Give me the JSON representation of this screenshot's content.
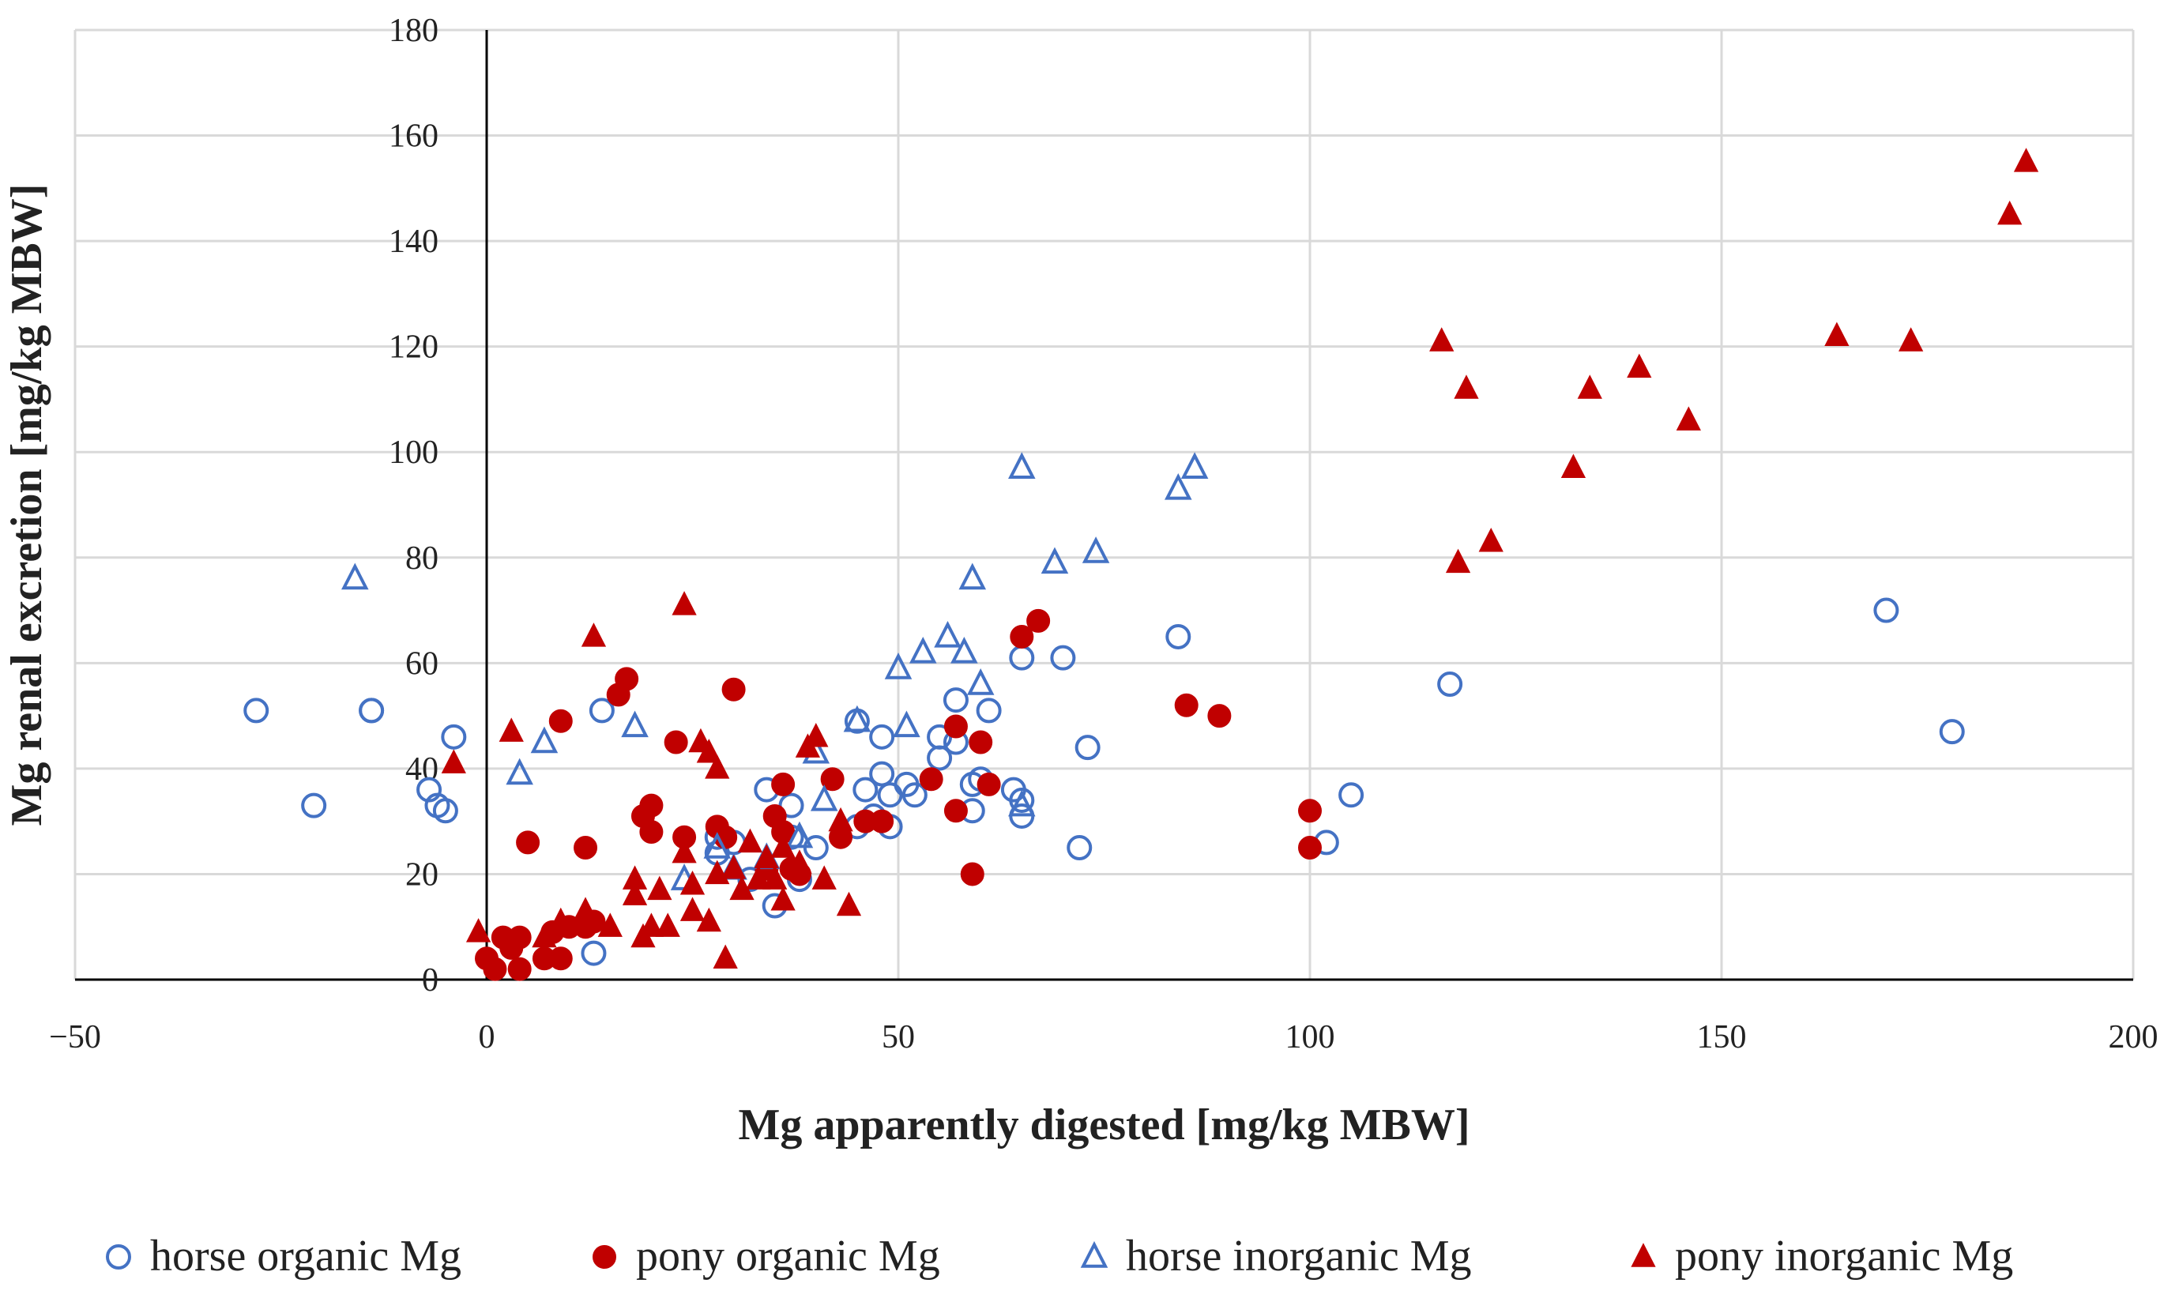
{
  "chart_data": {
    "type": "scatter",
    "title": "",
    "xlabel": "Mg apparently digested [mg/kg MBW]",
    "ylabel": "Mg renal excretion [mg/kg MBW]",
    "xlim": [
      -50,
      200
    ],
    "ylim": [
      0,
      180
    ],
    "xticks": [
      -50,
      0,
      50,
      100,
      150,
      200
    ],
    "xtick_labels": [
      "−50",
      "0",
      "50",
      "100",
      "150",
      "200"
    ],
    "yticks": [
      0,
      20,
      40,
      60,
      80,
      100,
      120,
      140,
      160,
      180
    ],
    "ytick_labels": [
      "0",
      "20",
      "40",
      "60",
      "80",
      "100",
      "120",
      "140",
      "160",
      "180"
    ],
    "grid": true,
    "legend_position": "bottom",
    "series": [
      {
        "name": "horse organic Mg",
        "marker": "circle-open",
        "color": "#4472C4",
        "points": [
          [
            -28,
            51
          ],
          [
            -21,
            33
          ],
          [
            -14,
            51
          ],
          [
            -14,
            51
          ],
          [
            -7,
            36
          ],
          [
            -6,
            33
          ],
          [
            -5,
            32
          ],
          [
            -4,
            46
          ],
          [
            13,
            5
          ],
          [
            14,
            51
          ],
          [
            28,
            24
          ],
          [
            28,
            27
          ],
          [
            30,
            26
          ],
          [
            32,
            19
          ],
          [
            34,
            36
          ],
          [
            35,
            14
          ],
          [
            37,
            33
          ],
          [
            37,
            27
          ],
          [
            38,
            19
          ],
          [
            40,
            25
          ],
          [
            45,
            29
          ],
          [
            45,
            49
          ],
          [
            46,
            36
          ],
          [
            47,
            31
          ],
          [
            48,
            46
          ],
          [
            48,
            39
          ],
          [
            49,
            29
          ],
          [
            49,
            35
          ],
          [
            51,
            37
          ],
          [
            52,
            35
          ],
          [
            55,
            46
          ],
          [
            55,
            42
          ],
          [
            57,
            53
          ],
          [
            57,
            45
          ],
          [
            59,
            37
          ],
          [
            59,
            32
          ],
          [
            60,
            38
          ],
          [
            61,
            51
          ],
          [
            64,
            36
          ],
          [
            65,
            34
          ],
          [
            65,
            31
          ],
          [
            65,
            61
          ],
          [
            70,
            61
          ],
          [
            72,
            25
          ],
          [
            73,
            44
          ],
          [
            84,
            65
          ],
          [
            102,
            26
          ],
          [
            105,
            35
          ],
          [
            117,
            56
          ],
          [
            170,
            70
          ],
          [
            178,
            47
          ]
        ]
      },
      {
        "name": "pony organic Mg",
        "marker": "circle-filled",
        "color": "#C00000",
        "points": [
          [
            0,
            4
          ],
          [
            1,
            2
          ],
          [
            2,
            8
          ],
          [
            3,
            6
          ],
          [
            4,
            2
          ],
          [
            4,
            8
          ],
          [
            5,
            26
          ],
          [
            7,
            4
          ],
          [
            8,
            9
          ],
          [
            9,
            49
          ],
          [
            9,
            4
          ],
          [
            10,
            10
          ],
          [
            12,
            10
          ],
          [
            12,
            25
          ],
          [
            13,
            11
          ],
          [
            16,
            54
          ],
          [
            17,
            57
          ],
          [
            19,
            31
          ],
          [
            20,
            33
          ],
          [
            20,
            28
          ],
          [
            23,
            45
          ],
          [
            24,
            27
          ],
          [
            28,
            29
          ],
          [
            29,
            27
          ],
          [
            30,
            55
          ],
          [
            34,
            21
          ],
          [
            35,
            31
          ],
          [
            36,
            37
          ],
          [
            36,
            28
          ],
          [
            37,
            21
          ],
          [
            38,
            20
          ],
          [
            42,
            38
          ],
          [
            43,
            27
          ],
          [
            46,
            30
          ],
          [
            48,
            30
          ],
          [
            54,
            38
          ],
          [
            57,
            48
          ],
          [
            57,
            32
          ],
          [
            59,
            20
          ],
          [
            60,
            45
          ],
          [
            61,
            37
          ],
          [
            65,
            65
          ],
          [
            67,
            68
          ],
          [
            85,
            52
          ],
          [
            89,
            50
          ],
          [
            100,
            32
          ],
          [
            100,
            25
          ]
        ]
      },
      {
        "name": "horse inorganic Mg",
        "marker": "triangle-open",
        "color": "#4472C4",
        "points": [
          [
            -16,
            76
          ],
          [
            4,
            39
          ],
          [
            7,
            45
          ],
          [
            18,
            48
          ],
          [
            24,
            19
          ],
          [
            28,
            25
          ],
          [
            30,
            21
          ],
          [
            34,
            23
          ],
          [
            38,
            27
          ],
          [
            40,
            43
          ],
          [
            41,
            34
          ],
          [
            45,
            49
          ],
          [
            50,
            59
          ],
          [
            51,
            48
          ],
          [
            53,
            62
          ],
          [
            56,
            65
          ],
          [
            58,
            62
          ],
          [
            59,
            76
          ],
          [
            60,
            56
          ],
          [
            65,
            97
          ],
          [
            69,
            79
          ],
          [
            74,
            81
          ],
          [
            84,
            93
          ],
          [
            86,
            97
          ],
          [
            65,
            33
          ]
        ]
      },
      {
        "name": "pony inorganic Mg",
        "marker": "triangle-filled",
        "color": "#C00000",
        "points": [
          [
            -1,
            9
          ],
          [
            -4,
            41
          ],
          [
            3,
            47
          ],
          [
            7,
            8
          ],
          [
            9,
            11
          ],
          [
            12,
            13
          ],
          [
            13,
            65
          ],
          [
            15,
            10
          ],
          [
            18,
            19
          ],
          [
            18,
            16
          ],
          [
            19,
            8
          ],
          [
            20,
            10
          ],
          [
            21,
            17
          ],
          [
            22,
            10
          ],
          [
            24,
            24
          ],
          [
            24,
            71
          ],
          [
            25,
            18
          ],
          [
            25,
            13
          ],
          [
            26,
            45
          ],
          [
            27,
            11
          ],
          [
            27,
            43
          ],
          [
            28,
            40
          ],
          [
            28,
            20
          ],
          [
            29,
            4
          ],
          [
            30,
            21
          ],
          [
            31,
            17
          ],
          [
            32,
            26
          ],
          [
            33,
            19
          ],
          [
            34,
            23
          ],
          [
            35,
            19
          ],
          [
            36,
            15
          ],
          [
            36,
            25
          ],
          [
            38,
            22
          ],
          [
            39,
            44
          ],
          [
            40,
            46
          ],
          [
            41,
            19
          ],
          [
            43,
            30
          ],
          [
            44,
            14
          ],
          [
            116,
            121
          ],
          [
            118,
            79
          ],
          [
            119,
            112
          ],
          [
            122,
            83
          ],
          [
            132,
            97
          ],
          [
            134,
            112
          ],
          [
            140,
            116
          ],
          [
            146,
            106
          ],
          [
            164,
            122
          ],
          [
            173,
            121
          ],
          [
            185,
            145
          ],
          [
            187,
            155
          ]
        ]
      }
    ]
  }
}
